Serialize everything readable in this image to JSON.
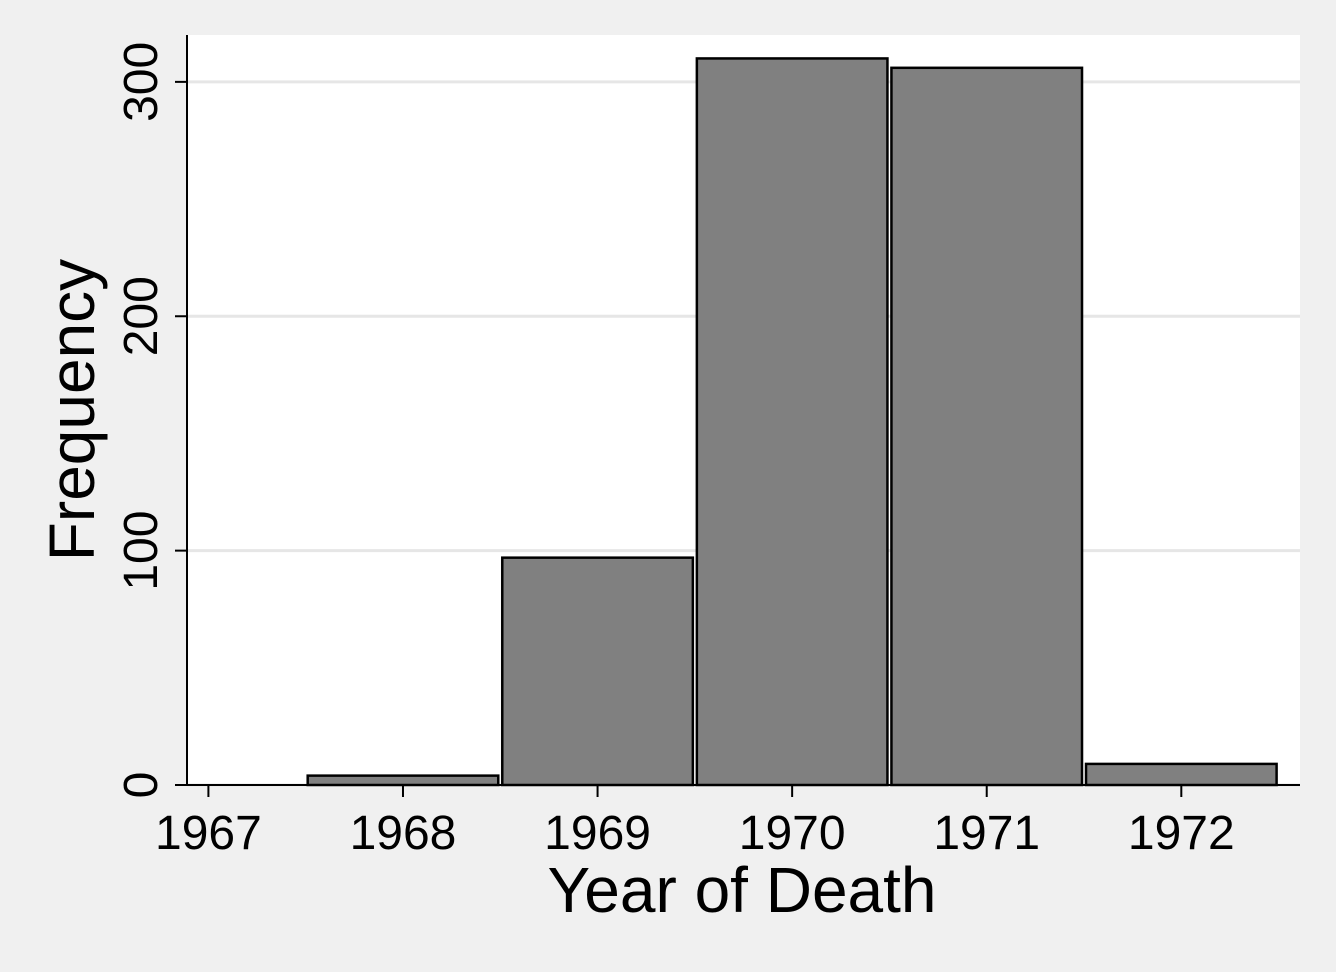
{
  "chart_data": {
    "type": "histogram",
    "x_label": "Year of Death",
    "y_label": "Frequency",
    "bins": [
      1967.5,
      1968.5,
      1969.5,
      1970.5,
      1971.5,
      1972.5
    ],
    "values": [
      4,
      97,
      310,
      306,
      9
    ],
    "color": "#808080",
    "xlim": [
      1966.89,
      1972.61
    ],
    "xticks": [
      1967,
      1968,
      1969,
      1970,
      1971,
      1972
    ],
    "ylim": [
      0,
      320
    ],
    "yticks": [
      0,
      100,
      200,
      300
    ],
    "grid": true
  }
}
